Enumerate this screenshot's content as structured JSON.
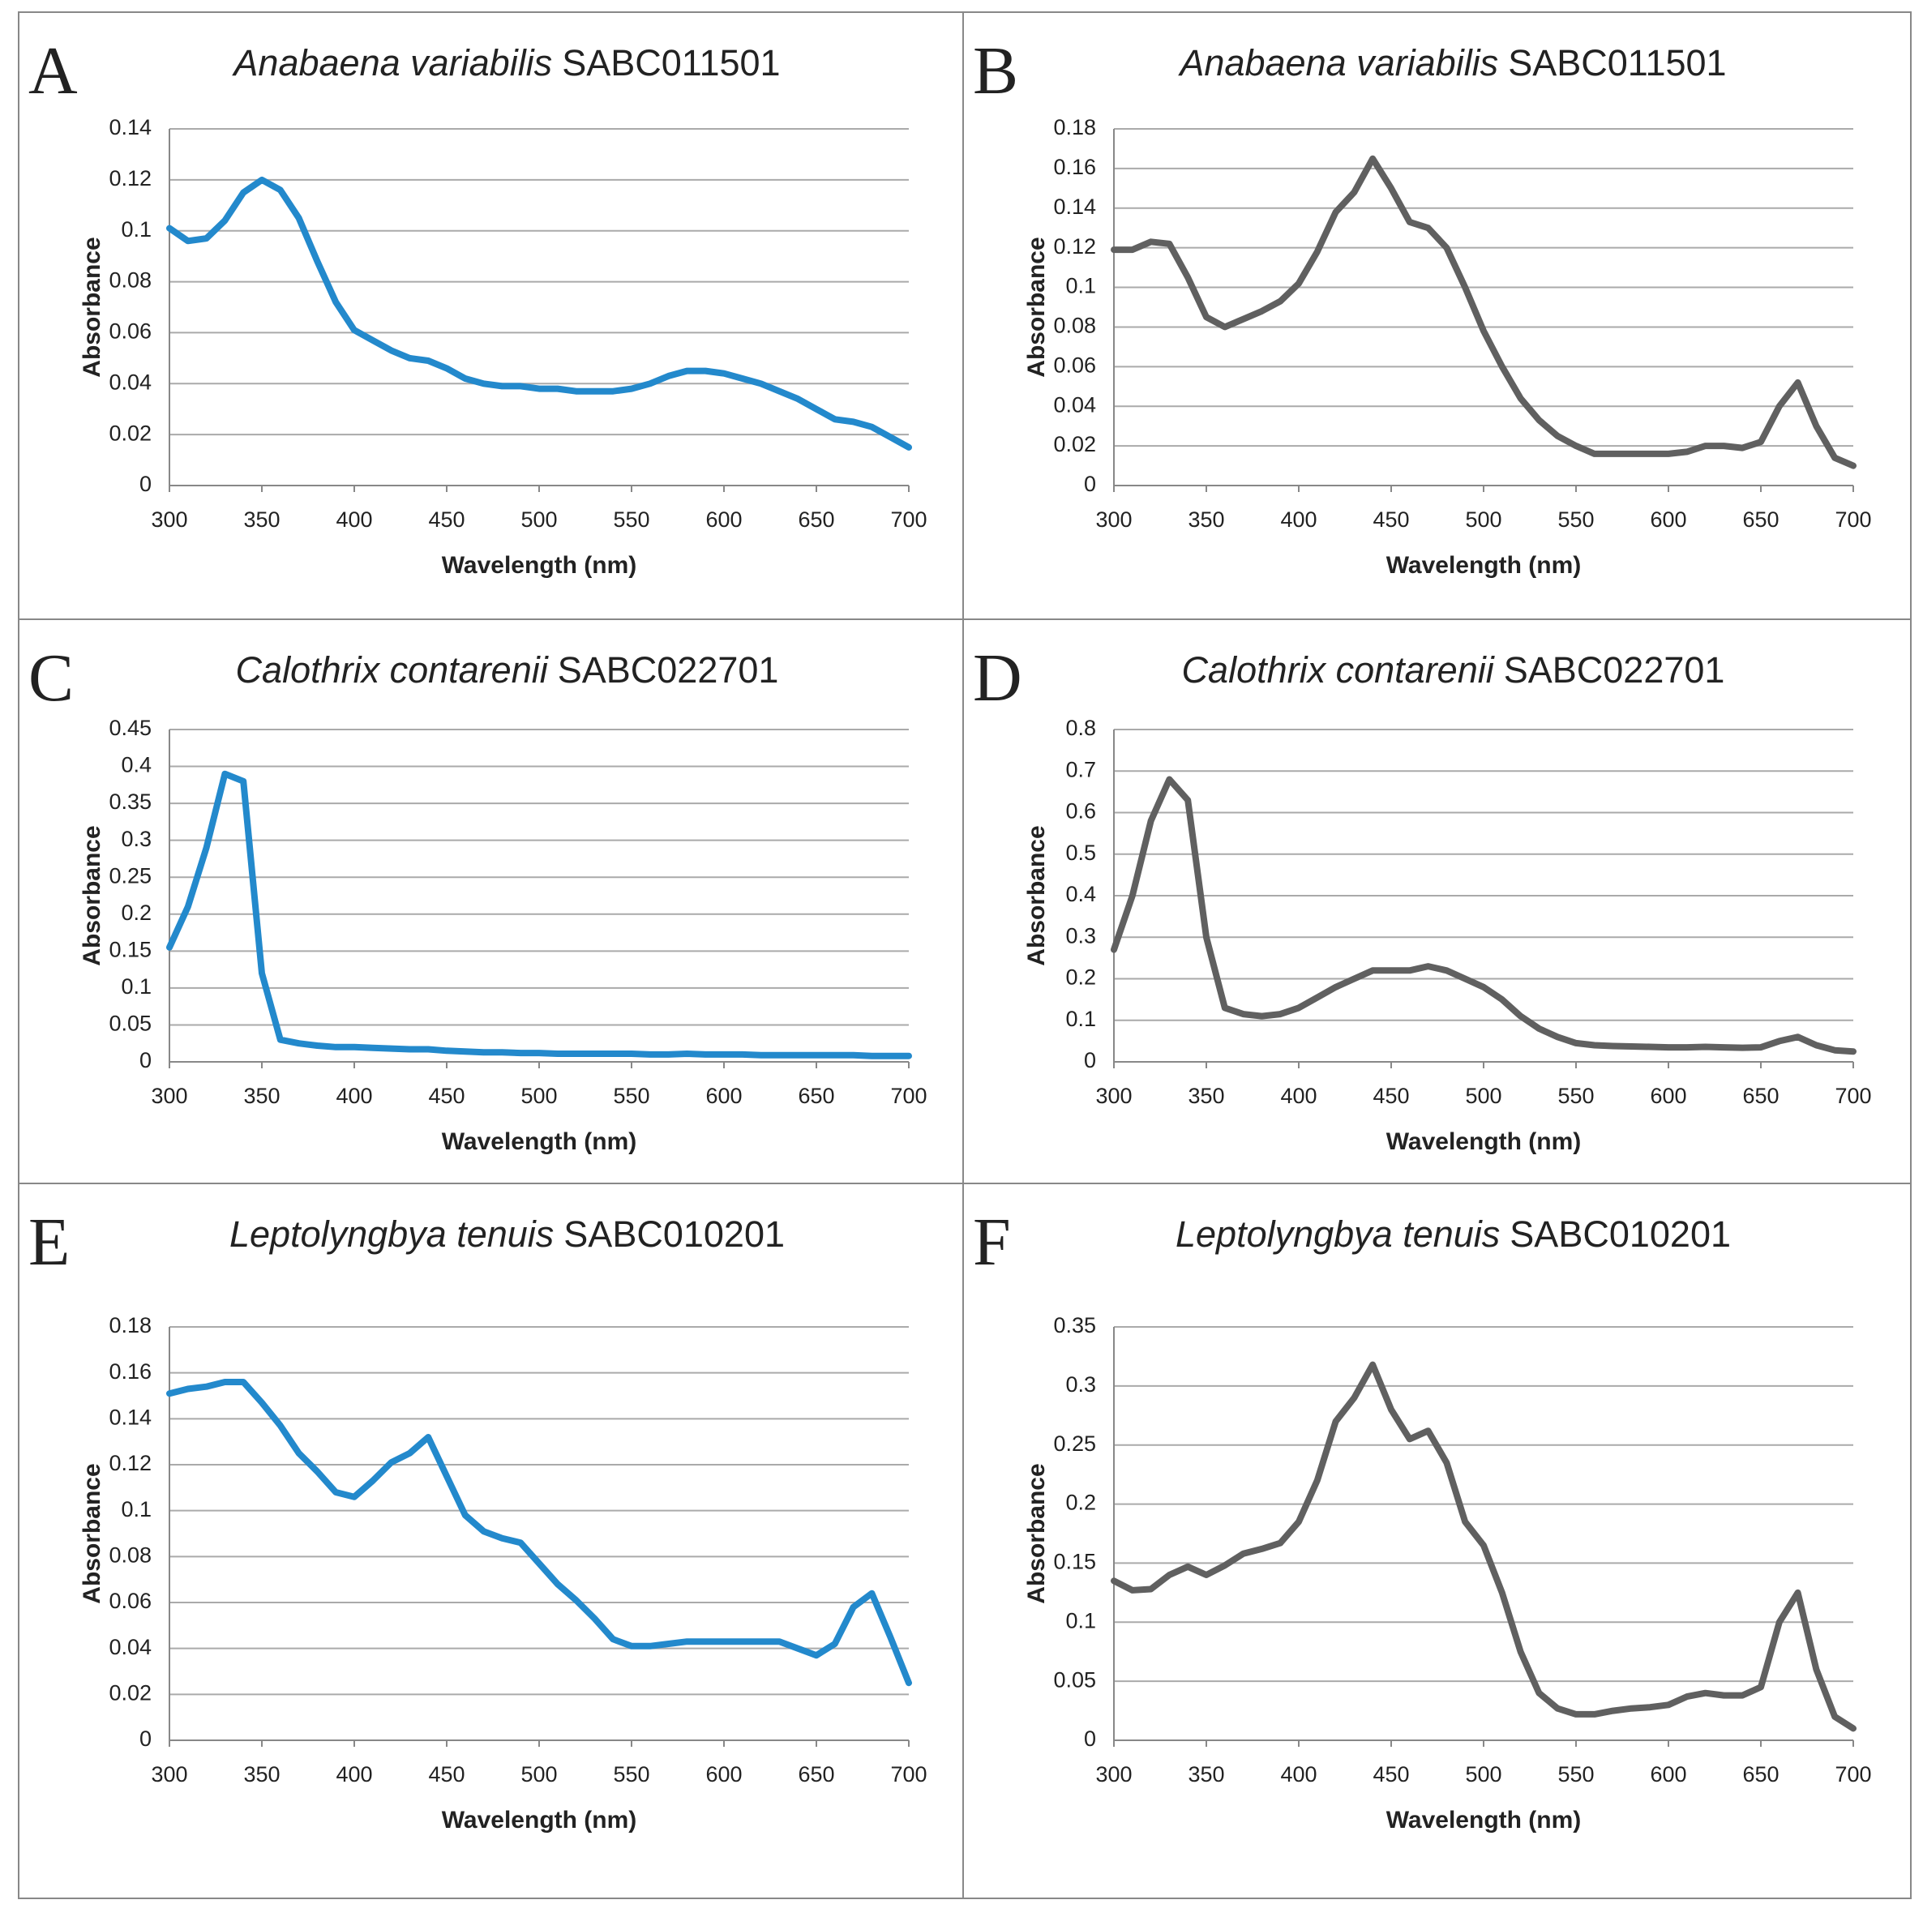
{
  "chart_data": [
    {
      "type": "line",
      "label": "A",
      "title_species": "Anabaena variabilis",
      "title_strain": "SABC011501",
      "xlabel": "Wavelength (nm)",
      "ylabel": "Absorbance",
      "color": "#2389cc",
      "x": [
        300,
        310,
        320,
        330,
        340,
        350,
        360,
        370,
        380,
        390,
        400,
        410,
        420,
        430,
        440,
        450,
        460,
        470,
        480,
        490,
        500,
        510,
        520,
        530,
        540,
        550,
        560,
        570,
        580,
        590,
        600,
        610,
        620,
        630,
        640,
        650,
        660,
        670,
        680,
        690,
        700
      ],
      "values": [
        0.101,
        0.096,
        0.097,
        0.104,
        0.115,
        0.12,
        0.116,
        0.105,
        0.088,
        0.072,
        0.061,
        0.057,
        0.053,
        0.05,
        0.049,
        0.046,
        0.042,
        0.04,
        0.039,
        0.039,
        0.038,
        0.038,
        0.037,
        0.037,
        0.037,
        0.038,
        0.04,
        0.043,
        0.045,
        0.045,
        0.044,
        0.042,
        0.04,
        0.037,
        0.034,
        0.03,
        0.026,
        0.025,
        0.023,
        0.019,
        0.015
      ],
      "xlim": [
        300,
        700
      ],
      "xticks": [
        300,
        350,
        400,
        450,
        500,
        550,
        600,
        650,
        700
      ],
      "ylim": [
        0,
        0.14
      ],
      "yticks": [
        0,
        0.02,
        0.04,
        0.06,
        0.08,
        0.1,
        0.12,
        0.14
      ],
      "grid": true
    },
    {
      "type": "line",
      "label": "B",
      "title_species": "Anabaena variabilis",
      "title_strain": "SABC011501",
      "xlabel": "Wavelength (nm)",
      "ylabel": "Absorbance",
      "color": "#606060",
      "x": [
        300,
        310,
        320,
        330,
        340,
        350,
        360,
        370,
        380,
        390,
        400,
        410,
        420,
        430,
        440,
        450,
        460,
        470,
        480,
        490,
        500,
        510,
        520,
        530,
        540,
        550,
        560,
        570,
        580,
        590,
        600,
        610,
        620,
        630,
        640,
        650,
        660,
        670,
        680,
        690,
        700
      ],
      "values": [
        0.119,
        0.119,
        0.123,
        0.122,
        0.105,
        0.085,
        0.08,
        0.084,
        0.088,
        0.093,
        0.102,
        0.118,
        0.138,
        0.148,
        0.165,
        0.15,
        0.133,
        0.13,
        0.12,
        0.1,
        0.078,
        0.06,
        0.044,
        0.033,
        0.025,
        0.02,
        0.016,
        0.016,
        0.016,
        0.016,
        0.016,
        0.017,
        0.02,
        0.02,
        0.019,
        0.022,
        0.04,
        0.052,
        0.03,
        0.014,
        0.01
      ],
      "xlim": [
        300,
        700
      ],
      "xticks": [
        300,
        350,
        400,
        450,
        500,
        550,
        600,
        650,
        700
      ],
      "ylim": [
        0,
        0.18
      ],
      "yticks": [
        0,
        0.02,
        0.04,
        0.06,
        0.08,
        0.1,
        0.12,
        0.14,
        0.16,
        0.18
      ],
      "grid": true
    },
    {
      "type": "line",
      "label": "C",
      "title_species": "Calothrix contarenii",
      "title_strain": "SABC022701",
      "xlabel": "Wavelength (nm)",
      "ylabel": "Absorbance",
      "color": "#2389cc",
      "x": [
        300,
        310,
        320,
        330,
        340,
        350,
        360,
        370,
        380,
        390,
        400,
        410,
        420,
        430,
        440,
        450,
        460,
        470,
        480,
        490,
        500,
        510,
        520,
        530,
        540,
        550,
        560,
        570,
        580,
        590,
        600,
        610,
        620,
        630,
        640,
        650,
        660,
        670,
        680,
        690,
        700
      ],
      "values": [
        0.155,
        0.21,
        0.29,
        0.39,
        0.38,
        0.12,
        0.03,
        0.025,
        0.022,
        0.02,
        0.02,
        0.019,
        0.018,
        0.017,
        0.017,
        0.015,
        0.014,
        0.013,
        0.013,
        0.012,
        0.012,
        0.011,
        0.011,
        0.011,
        0.011,
        0.011,
        0.01,
        0.01,
        0.011,
        0.01,
        0.01,
        0.01,
        0.009,
        0.009,
        0.009,
        0.009,
        0.009,
        0.009,
        0.008,
        0.008,
        0.008
      ],
      "xlim": [
        300,
        700
      ],
      "xticks": [
        300,
        350,
        400,
        450,
        500,
        550,
        600,
        650,
        700
      ],
      "ylim": [
        0,
        0.45
      ],
      "yticks": [
        0,
        0.05,
        0.1,
        0.15,
        0.2,
        0.25,
        0.3,
        0.35,
        0.4,
        0.45
      ],
      "grid": true
    },
    {
      "type": "line",
      "label": "D",
      "title_species": "Calothrix contarenii",
      "title_strain": "SABC022701",
      "xlabel": "Wavelength (nm)",
      "ylabel": "Absorbance",
      "color": "#606060",
      "x": [
        300,
        310,
        320,
        330,
        340,
        350,
        360,
        370,
        380,
        390,
        400,
        410,
        420,
        430,
        440,
        450,
        460,
        470,
        480,
        490,
        500,
        510,
        520,
        530,
        540,
        550,
        560,
        570,
        580,
        590,
        600,
        610,
        620,
        630,
        640,
        650,
        660,
        670,
        680,
        690,
        700
      ],
      "values": [
        0.27,
        0.4,
        0.58,
        0.68,
        0.63,
        0.3,
        0.13,
        0.115,
        0.11,
        0.115,
        0.13,
        0.155,
        0.18,
        0.2,
        0.22,
        0.22,
        0.22,
        0.23,
        0.22,
        0.2,
        0.18,
        0.15,
        0.11,
        0.08,
        0.06,
        0.045,
        0.04,
        0.038,
        0.037,
        0.036,
        0.035,
        0.035,
        0.036,
        0.035,
        0.034,
        0.035,
        0.05,
        0.06,
        0.04,
        0.028,
        0.025
      ],
      "xlim": [
        300,
        700
      ],
      "xticks": [
        300,
        350,
        400,
        450,
        500,
        550,
        600,
        650,
        700
      ],
      "ylim": [
        0,
        0.8
      ],
      "yticks": [
        0,
        0.1,
        0.2,
        0.3,
        0.4,
        0.5,
        0.6,
        0.7,
        0.8
      ],
      "grid": true
    },
    {
      "type": "line",
      "label": "E",
      "title_species": "Leptolyngbya tenuis",
      "title_strain": "SABC010201",
      "xlabel": "Wavelength (nm)",
      "ylabel": "Absorbance",
      "color": "#2389cc",
      "x": [
        300,
        310,
        320,
        330,
        340,
        350,
        360,
        370,
        380,
        390,
        400,
        410,
        420,
        430,
        440,
        450,
        460,
        470,
        480,
        490,
        500,
        510,
        520,
        530,
        540,
        550,
        560,
        570,
        580,
        590,
        600,
        610,
        620,
        630,
        640,
        650,
        660,
        670,
        680,
        690,
        700
      ],
      "values": [
        0.151,
        0.153,
        0.154,
        0.156,
        0.156,
        0.147,
        0.137,
        0.125,
        0.117,
        0.108,
        0.106,
        0.113,
        0.121,
        0.125,
        0.132,
        0.115,
        0.098,
        0.091,
        0.088,
        0.086,
        0.077,
        0.068,
        0.061,
        0.053,
        0.044,
        0.041,
        0.041,
        0.042,
        0.043,
        0.043,
        0.043,
        0.043,
        0.043,
        0.043,
        0.04,
        0.037,
        0.042,
        0.058,
        0.064,
        0.045,
        0.025
      ],
      "xlim": [
        300,
        700
      ],
      "xticks": [
        300,
        350,
        400,
        450,
        500,
        550,
        600,
        650,
        700
      ],
      "ylim": [
        0,
        0.18
      ],
      "yticks": [
        0,
        0.02,
        0.04,
        0.06,
        0.08,
        0.1,
        0.12,
        0.14,
        0.16,
        0.18
      ],
      "grid": true
    },
    {
      "type": "line",
      "label": "F",
      "title_species": "Leptolyngbya tenuis",
      "title_strain": "SABC010201",
      "xlabel": "Wavelength (nm)",
      "ylabel": "Absorbance",
      "color": "#606060",
      "x": [
        300,
        310,
        320,
        330,
        340,
        350,
        360,
        370,
        380,
        390,
        400,
        410,
        420,
        430,
        440,
        450,
        460,
        470,
        480,
        490,
        500,
        510,
        520,
        530,
        540,
        550,
        560,
        570,
        580,
        590,
        600,
        610,
        620,
        630,
        640,
        650,
        660,
        670,
        680,
        690,
        700
      ],
      "values": [
        0.135,
        0.127,
        0.128,
        0.14,
        0.147,
        0.14,
        0.148,
        0.158,
        0.162,
        0.167,
        0.185,
        0.22,
        0.27,
        0.29,
        0.318,
        0.28,
        0.255,
        0.262,
        0.235,
        0.185,
        0.165,
        0.125,
        0.075,
        0.04,
        0.027,
        0.022,
        0.022,
        0.025,
        0.027,
        0.028,
        0.03,
        0.037,
        0.04,
        0.038,
        0.038,
        0.045,
        0.1,
        0.125,
        0.06,
        0.02,
        0.01
      ],
      "xlim": [
        300,
        700
      ],
      "xticks": [
        300,
        350,
        400,
        450,
        500,
        550,
        600,
        650,
        700
      ],
      "ylim": [
        0,
        0.35
      ],
      "yticks": [
        0,
        0.05,
        0.1,
        0.15,
        0.2,
        0.25,
        0.3,
        0.35
      ],
      "grid": true
    }
  ]
}
